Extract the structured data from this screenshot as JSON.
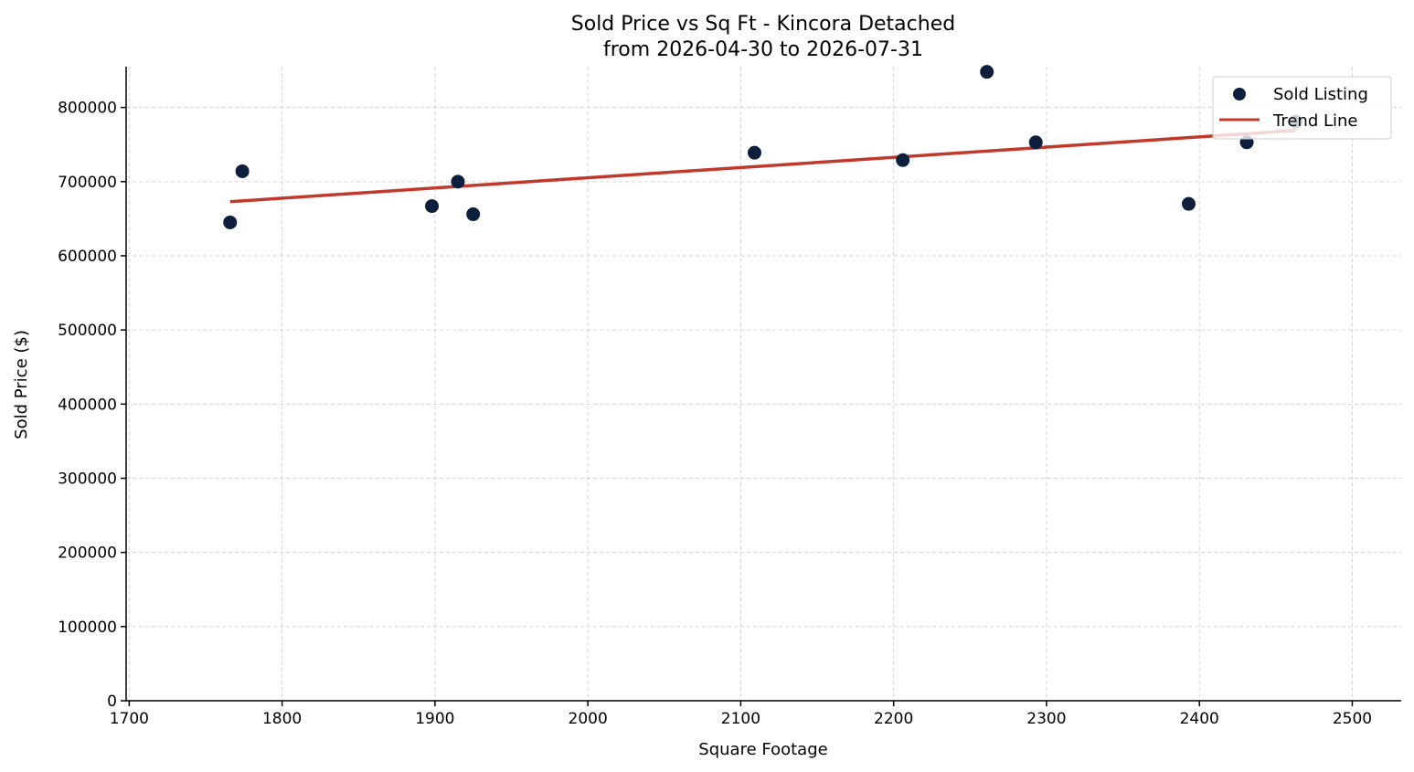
{
  "chart_data": {
    "type": "scatter",
    "title": "Sold Price vs Sq Ft - Kincora Detached",
    "subtitle": "from 2026-04-30 to 2026-07-31",
    "xlabel": "Square Footage",
    "ylabel": "Sold Price ($)",
    "xlim": [
      1698,
      2532
    ],
    "ylim": [
      0,
      855000
    ],
    "x_ticks": [
      1700,
      1800,
      1900,
      2000,
      2100,
      2200,
      2300,
      2400,
      2500
    ],
    "y_ticks": [
      0,
      100000,
      200000,
      300000,
      400000,
      500000,
      600000,
      700000,
      800000
    ],
    "x_tick_labels": [
      "1700",
      "1800",
      "1900",
      "2000",
      "2100",
      "2200",
      "2300",
      "2400",
      "2500"
    ],
    "y_tick_labels": [
      "0",
      "100000",
      "200000",
      "300000",
      "400000",
      "500000",
      "600000",
      "700000",
      "800000"
    ],
    "grid": true,
    "legend_position": "top-right",
    "series": [
      {
        "name": "Sold Listing",
        "kind": "scatter",
        "color": "#0d1f3c",
        "points": [
          {
            "x": 1766,
            "y": 645000
          },
          {
            "x": 1774,
            "y": 714000
          },
          {
            "x": 1898,
            "y": 667000
          },
          {
            "x": 1915,
            "y": 700000
          },
          {
            "x": 1925,
            "y": 656000
          },
          {
            "x": 2109,
            "y": 739000
          },
          {
            "x": 2206,
            "y": 729000
          },
          {
            "x": 2261,
            "y": 848000
          },
          {
            "x": 2293,
            "y": 753000
          },
          {
            "x": 2393,
            "y": 670000
          },
          {
            "x": 2431,
            "y": 753000
          },
          {
            "x": 2463,
            "y": 781000
          }
        ]
      },
      {
        "name": "Trend Line",
        "kind": "line",
        "color": "#c0392b",
        "points": [
          {
            "x": 1766,
            "y": 673000
          },
          {
            "x": 2463,
            "y": 769000
          }
        ]
      }
    ]
  }
}
